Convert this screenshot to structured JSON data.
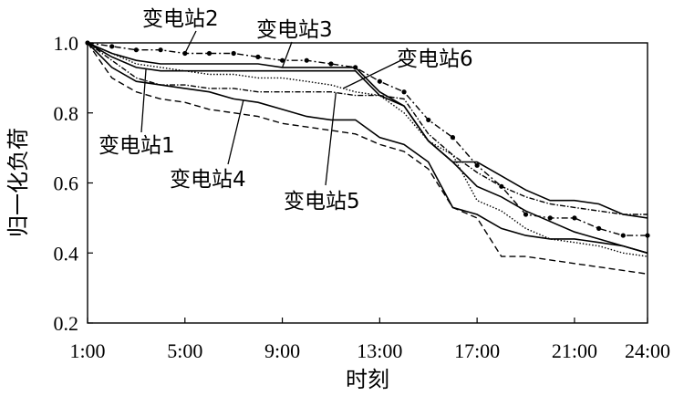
{
  "chart_data": {
    "type": "line",
    "xlabel": "时刻",
    "ylabel": "归一化负荷",
    "x_ticks": [
      "1:00",
      "5:00",
      "9:00",
      "13:00",
      "17:00",
      "21:00",
      "24:00"
    ],
    "y_ticks": [
      "0.2",
      "0.4",
      "0.6",
      "0.8",
      "1.0"
    ],
    "xlim": [
      1,
      24
    ],
    "ylim": [
      0.2,
      1.0
    ],
    "x": [
      1,
      2,
      3,
      4,
      5,
      6,
      7,
      8,
      9,
      10,
      11,
      12,
      13,
      14,
      15,
      16,
      17,
      18,
      19,
      20,
      21,
      22,
      23,
      24
    ],
    "series": [
      {
        "name": "变电站1",
        "style": "solid",
        "values": [
          1.0,
          0.96,
          0.93,
          0.92,
          0.92,
          0.92,
          0.92,
          0.92,
          0.92,
          0.92,
          0.92,
          0.92,
          0.85,
          0.82,
          0.72,
          0.66,
          0.59,
          0.56,
          0.52,
          0.49,
          0.46,
          0.44,
          0.42,
          0.4
        ]
      },
      {
        "name": "变电站2",
        "style": "dash-dot-marker",
        "values": [
          1.0,
          0.99,
          0.98,
          0.98,
          0.97,
          0.97,
          0.97,
          0.96,
          0.95,
          0.95,
          0.94,
          0.93,
          0.89,
          0.86,
          0.78,
          0.73,
          0.65,
          0.59,
          0.51,
          0.5,
          0.5,
          0.47,
          0.45,
          0.45
        ]
      },
      {
        "name": "变电站3",
        "style": "solid",
        "values": [
          1.0,
          0.97,
          0.95,
          0.94,
          0.94,
          0.94,
          0.94,
          0.94,
          0.93,
          0.93,
          0.93,
          0.93,
          0.86,
          0.82,
          0.72,
          0.66,
          0.66,
          0.62,
          0.58,
          0.55,
          0.55,
          0.54,
          0.51,
          0.5
        ]
      },
      {
        "name": "变电站4",
        "style": "solid",
        "values": [
          1.0,
          0.93,
          0.89,
          0.88,
          0.87,
          0.86,
          0.84,
          0.83,
          0.81,
          0.79,
          0.78,
          0.78,
          0.73,
          0.71,
          0.66,
          0.53,
          0.51,
          0.47,
          0.45,
          0.44,
          0.44,
          0.43,
          0.42,
          0.4
        ]
      },
      {
        "name": "变电站5",
        "style": "dash-dot",
        "values": [
          1.0,
          0.95,
          0.9,
          0.88,
          0.88,
          0.87,
          0.87,
          0.86,
          0.86,
          0.86,
          0.86,
          0.85,
          0.85,
          0.84,
          0.74,
          0.68,
          0.63,
          0.59,
          0.56,
          0.54,
          0.53,
          0.52,
          0.51,
          0.51
        ]
      },
      {
        "name": "变电站6",
        "style": "dotted",
        "values": [
          1.0,
          0.97,
          0.94,
          0.93,
          0.92,
          0.91,
          0.91,
          0.9,
          0.9,
          0.89,
          0.88,
          0.86,
          0.85,
          0.8,
          0.72,
          0.68,
          0.55,
          0.52,
          0.47,
          0.44,
          0.43,
          0.42,
          0.4,
          0.39
        ]
      },
      {
        "name": "",
        "style": "dashed",
        "values": [
          1.0,
          0.9,
          0.86,
          0.84,
          0.83,
          0.81,
          0.8,
          0.79,
          0.77,
          0.76,
          0.75,
          0.74,
          0.71,
          0.69,
          0.64,
          0.53,
          0.5,
          0.39,
          0.39,
          0.38,
          0.37,
          0.36,
          0.35,
          0.34
        ]
      }
    ],
    "annotations": [
      {
        "text": "变电站1",
        "series": "变电站1"
      },
      {
        "text": "变电站2",
        "series": "变电站2"
      },
      {
        "text": "变电站3",
        "series": "变电站3"
      },
      {
        "text": "变电站4",
        "series": "变电站4"
      },
      {
        "text": "变电站5",
        "series": "变电站5"
      },
      {
        "text": "变电站6",
        "series": "变电站6"
      }
    ],
    "grid": false,
    "legend": "none"
  }
}
